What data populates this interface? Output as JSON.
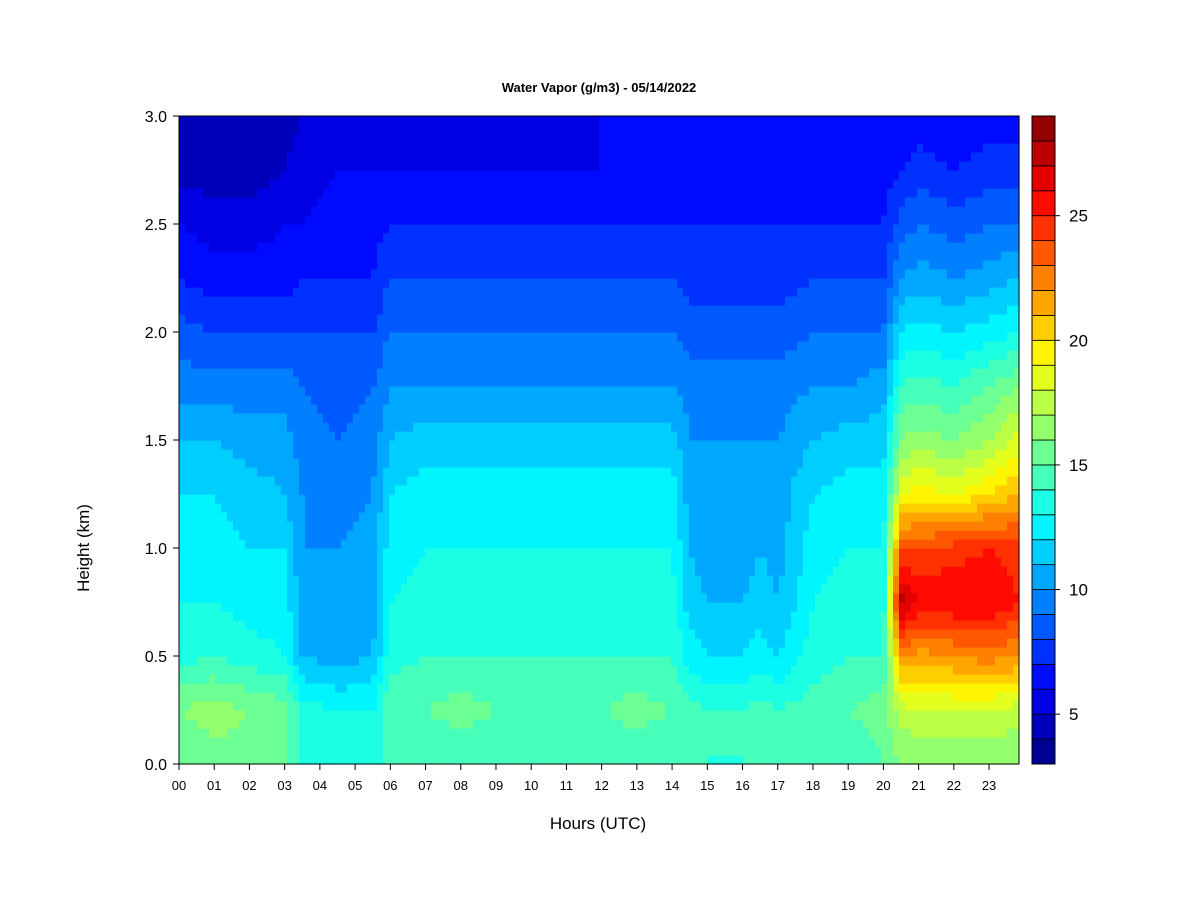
{
  "chart_data": {
    "type": "heatmap",
    "title": "Water Vapor (g/m3) - 05/14/2022",
    "xlabel": "Hours (UTC)",
    "ylabel": "Height (km)",
    "x_ticks": [
      "00",
      "01",
      "02",
      "03",
      "04",
      "05",
      "06",
      "07",
      "08",
      "09",
      "10",
      "11",
      "12",
      "13",
      "14",
      "15",
      "16",
      "17",
      "18",
      "19",
      "20",
      "21",
      "22",
      "23"
    ],
    "y_ticks": [
      "0.0",
      "0.5",
      "1.0",
      "1.5",
      "2.0",
      "2.5",
      "3.0"
    ],
    "xlim": [
      0,
      23.85
    ],
    "ylim": [
      0,
      3.0
    ],
    "colorbar": {
      "range": [
        3,
        29
      ],
      "step": 1,
      "tick_values": [
        5,
        10,
        15,
        20,
        25
      ],
      "tick_labels": [
        "5",
        "10",
        "15",
        "20",
        "25"
      ],
      "colormap": "jet"
    },
    "heights_km": [
      0.0,
      0.25,
      0.5,
      0.75,
      1.0,
      1.25,
      1.5,
      1.75,
      2.0,
      2.25,
      2.5,
      2.75,
      3.0
    ],
    "profile_hours": [
      0.0,
      1.0,
      2.0,
      3.0,
      3.5,
      4.5,
      5.5,
      6.0,
      7.0,
      8.0,
      9.0,
      10.0,
      11.0,
      12.0,
      13.0,
      14.0,
      14.5,
      15.0,
      16.0,
      16.5,
      17.0,
      18.0,
      19.0,
      20.0,
      20.5,
      21.0,
      22.0,
      23.0,
      23.85
    ],
    "profiles": [
      [
        15.0,
        16.0,
        13.5,
        13.0,
        12.5,
        12.0,
        11.0,
        9.5,
        8.5,
        7.0,
        6.0,
        4.5,
        4.0
      ],
      [
        15.5,
        16.5,
        14.0,
        13.0,
        12.5,
        12.0,
        11.0,
        9.5,
        8.0,
        6.5,
        5.5,
        4.5,
        4.0
      ],
      [
        15.5,
        16.0,
        13.5,
        12.5,
        12.0,
        11.5,
        10.5,
        9.5,
        8.0,
        6.5,
        5.5,
        4.5,
        4.5
      ],
      [
        15.0,
        15.5,
        13.0,
        12.5,
        12.0,
        11.0,
        10.5,
        9.5,
        8.0,
        6.5,
        6.0,
        5.0,
        4.5
      ],
      [
        14.0,
        13.5,
        11.0,
        10.5,
        10.0,
        10.0,
        9.5,
        9.0,
        8.0,
        7.0,
        6.0,
        5.5,
        5.0
      ],
      [
        14.0,
        13.0,
        10.5,
        10.0,
        10.0,
        9.5,
        9.0,
        8.5,
        8.0,
        7.0,
        6.5,
        6.0,
        5.5
      ],
      [
        14.0,
        13.0,
        11.0,
        10.5,
        10.5,
        10.0,
        9.5,
        9.0,
        8.0,
        7.0,
        6.5,
        6.0,
        5.5
      ],
      [
        14.0,
        15.0,
        13.5,
        13.0,
        12.5,
        12.0,
        11.0,
        10.0,
        9.0,
        8.0,
        7.0,
        6.0,
        5.5
      ],
      [
        14.0,
        15.0,
        14.0,
        13.5,
        13.0,
        12.5,
        11.5,
        10.0,
        9.0,
        8.0,
        7.0,
        6.0,
        5.5
      ],
      [
        14.0,
        15.5,
        14.0,
        13.5,
        13.0,
        12.5,
        11.5,
        10.0,
        9.0,
        8.0,
        7.0,
        6.0,
        5.5
      ],
      [
        14.0,
        15.0,
        14.0,
        13.5,
        13.0,
        12.5,
        11.5,
        10.0,
        9.0,
        8.0,
        7.0,
        6.0,
        5.5
      ],
      [
        14.0,
        15.0,
        14.0,
        13.5,
        13.0,
        12.5,
        11.5,
        10.0,
        9.0,
        8.0,
        7.0,
        6.0,
        5.5
      ],
      [
        14.0,
        15.0,
        14.0,
        13.5,
        13.0,
        12.5,
        11.5,
        10.0,
        9.0,
        8.0,
        7.0,
        6.0,
        5.5
      ],
      [
        14.0,
        15.0,
        14.0,
        13.5,
        13.0,
        12.5,
        11.5,
        10.0,
        9.0,
        8.0,
        7.0,
        6.0,
        6.0
      ],
      [
        14.0,
        15.5,
        14.0,
        13.5,
        13.0,
        12.5,
        11.5,
        10.0,
        9.0,
        8.0,
        7.0,
        6.0,
        6.0
      ],
      [
        14.0,
        15.0,
        14.0,
        13.5,
        13.0,
        12.5,
        11.5,
        10.0,
        9.0,
        8.0,
        7.0,
        6.0,
        6.0
      ],
      [
        14.0,
        14.5,
        12.5,
        11.5,
        11.0,
        10.5,
        10.0,
        9.5,
        8.5,
        7.5,
        7.0,
        6.5,
        6.0
      ],
      [
        14.0,
        14.0,
        12.0,
        11.0,
        10.5,
        10.5,
        10.0,
        9.5,
        8.5,
        7.5,
        7.0,
        6.5,
        6.0
      ],
      [
        14.0,
        14.0,
        12.0,
        11.0,
        10.5,
        10.0,
        10.0,
        9.5,
        8.5,
        7.5,
        7.0,
        6.5,
        6.0
      ],
      [
        14.0,
        14.5,
        12.5,
        11.5,
        11.0,
        10.5,
        10.0,
        9.5,
        8.5,
        7.5,
        7.0,
        6.5,
        6.0
      ],
      [
        14.0,
        14.0,
        12.0,
        11.0,
        10.5,
        10.5,
        10.0,
        9.5,
        8.5,
        7.5,
        7.0,
        6.5,
        6.0
      ],
      [
        14.0,
        14.5,
        13.5,
        13.0,
        12.5,
        12.0,
        11.0,
        10.0,
        9.0,
        8.0,
        7.0,
        6.5,
        6.0
      ],
      [
        14.0,
        15.0,
        14.0,
        13.5,
        13.0,
        12.5,
        11.5,
        10.0,
        9.0,
        8.0,
        7.0,
        6.5,
        6.0
      ],
      [
        15.0,
        15.5,
        14.0,
        13.5,
        13.0,
        12.5,
        11.5,
        10.5,
        9.0,
        8.0,
        7.0,
        6.5,
        6.0
      ],
      [
        16.0,
        17.5,
        22.0,
        27.5,
        24.0,
        19.0,
        16.0,
        14.0,
        12.0,
        10.0,
        8.5,
        7.0,
        6.0
      ],
      [
        16.0,
        18.0,
        21.5,
        26.0,
        24.0,
        19.5,
        16.5,
        14.5,
        12.5,
        10.5,
        9.0,
        7.5,
        6.5
      ],
      [
        16.0,
        18.0,
        22.0,
        26.0,
        24.5,
        19.0,
        16.0,
        14.0,
        12.0,
        10.0,
        8.5,
        7.0,
        6.0
      ],
      [
        16.0,
        18.0,
        22.5,
        26.0,
        25.0,
        20.0,
        17.0,
        15.0,
        12.5,
        10.5,
        9.0,
        7.5,
        6.5
      ],
      [
        16.0,
        17.5,
        22.0,
        25.0,
        24.5,
        21.0,
        18.5,
        16.0,
        13.0,
        11.0,
        9.0,
        7.5,
        6.5
      ]
    ]
  }
}
